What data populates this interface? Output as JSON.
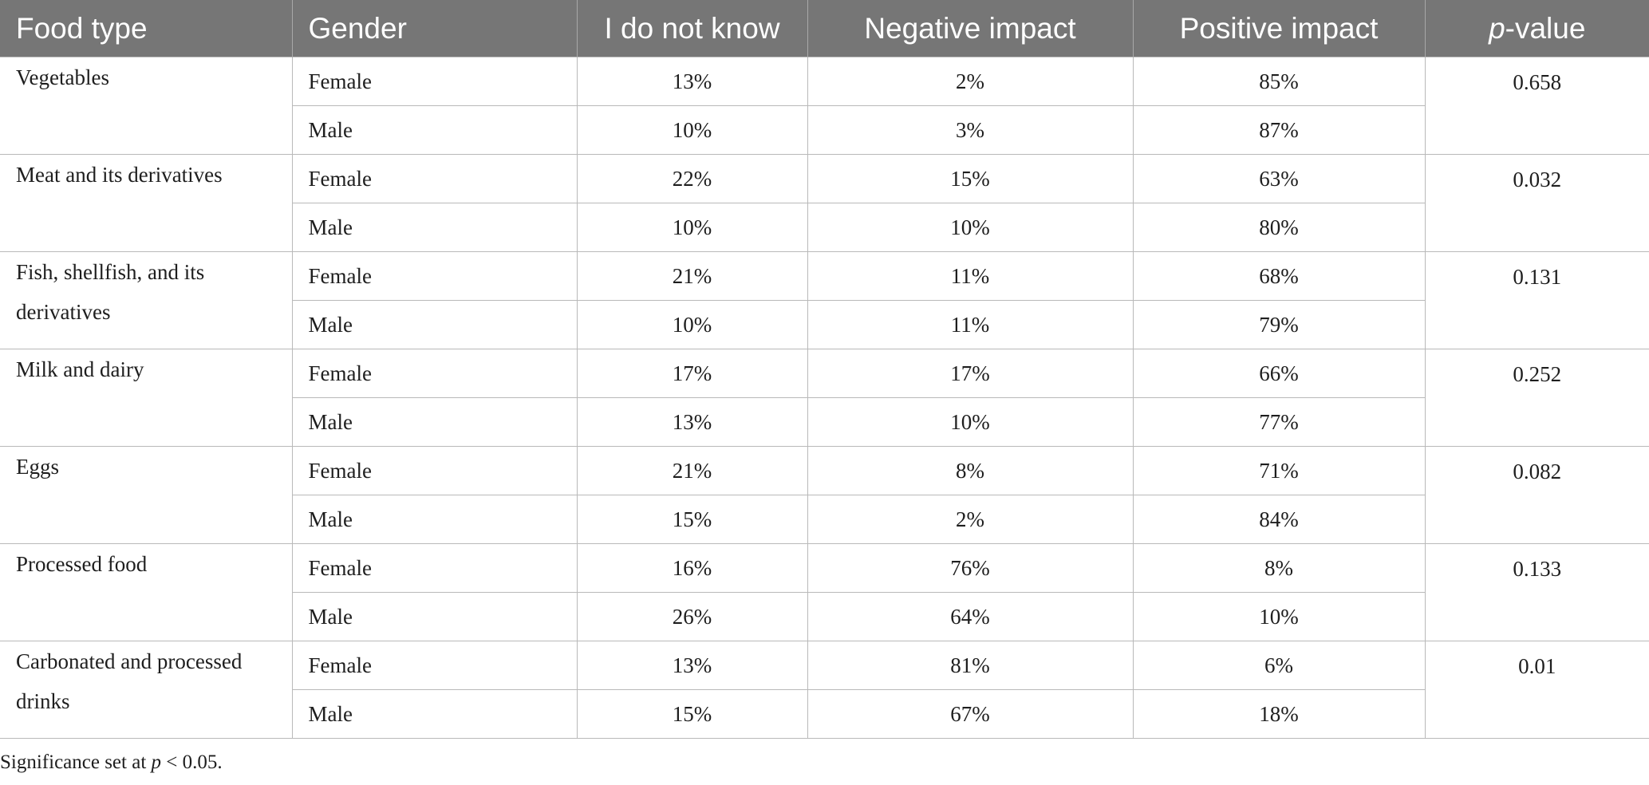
{
  "table": {
    "headers": {
      "food_type": "Food type",
      "gender": "Gender",
      "dont_know": "I do not know",
      "negative": "Negative impact",
      "positive": "Positive impact",
      "p_value_p": "p",
      "p_value_rest": "-value"
    },
    "groups": [
      {
        "food": "Vegetables",
        "p": "0.658",
        "rows": [
          {
            "gender": "Female",
            "dont_know": "13%",
            "negative": "2%",
            "positive": "85%"
          },
          {
            "gender": "Male",
            "dont_know": "10%",
            "negative": "3%",
            "positive": "87%"
          }
        ]
      },
      {
        "food": "Meat and its derivatives",
        "p": "0.032",
        "rows": [
          {
            "gender": "Female",
            "dont_know": "22%",
            "negative": "15%",
            "positive": "63%"
          },
          {
            "gender": "Male",
            "dont_know": "10%",
            "negative": "10%",
            "positive": "80%"
          }
        ]
      },
      {
        "food": "Fish, shellfish, and its derivatives",
        "p": "0.131",
        "rows": [
          {
            "gender": "Female",
            "dont_know": "21%",
            "negative": "11%",
            "positive": "68%"
          },
          {
            "gender": "Male",
            "dont_know": "10%",
            "negative": "11%",
            "positive": "79%"
          }
        ]
      },
      {
        "food": "Milk and dairy",
        "p": "0.252",
        "rows": [
          {
            "gender": "Female",
            "dont_know": "17%",
            "negative": "17%",
            "positive": "66%"
          },
          {
            "gender": "Male",
            "dont_know": "13%",
            "negative": "10%",
            "positive": "77%"
          }
        ]
      },
      {
        "food": "Eggs",
        "p": "0.082",
        "rows": [
          {
            "gender": "Female",
            "dont_know": "21%",
            "negative": "8%",
            "positive": "71%"
          },
          {
            "gender": "Male",
            "dont_know": "15%",
            "negative": "2%",
            "positive": "84%"
          }
        ]
      },
      {
        "food": "Processed food",
        "p": "0.133",
        "rows": [
          {
            "gender": "Female",
            "dont_know": "16%",
            "negative": "76%",
            "positive": "8%"
          },
          {
            "gender": "Male",
            "dont_know": "26%",
            "negative": "64%",
            "positive": "10%"
          }
        ]
      },
      {
        "food": "Carbonated and processed drinks",
        "p": "0.01",
        "rows": [
          {
            "gender": "Female",
            "dont_know": "13%",
            "negative": "81%",
            "positive": "6%"
          },
          {
            "gender": "Male",
            "dont_know": "15%",
            "negative": "67%",
            "positive": "18%"
          }
        ]
      }
    ]
  },
  "footnote": {
    "prefix": "Significance set at ",
    "p": "p",
    "suffix": " < 0.05."
  }
}
